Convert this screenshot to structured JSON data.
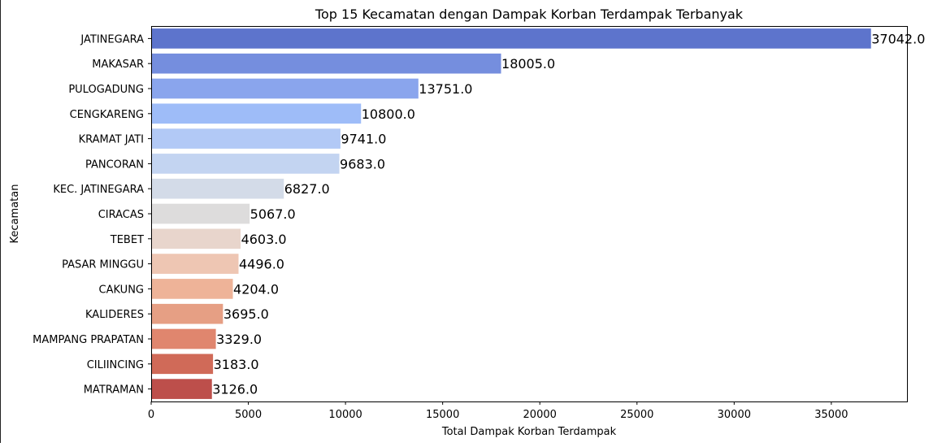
{
  "chart_data": {
    "type": "bar",
    "orientation": "horizontal",
    "title": "Top 15 Kecamatan dengan Dampak Korban Terdampak Terbanyak",
    "xlabel": "Total Dampak Korban Terdampak",
    "ylabel": "Kecamatan",
    "xlim": [
      0,
      38894
    ],
    "xticks": [
      0,
      5000,
      10000,
      15000,
      20000,
      25000,
      30000,
      35000
    ],
    "grid": false,
    "legend": "none",
    "categories": [
      "JATINEGARA",
      "MAKASAR",
      "PULOGADUNG",
      "CENGKARENG",
      "KRAMAT JATI",
      "PANCORAN",
      "KEC. JATINEGARA",
      "CIRACAS",
      "TEBET",
      "PASAR MINGGU",
      "CAKUNG",
      "KALIDERES",
      "MAMPANG PRAPATAN",
      "CILIINCING",
      "MATRAMAN"
    ],
    "values": [
      37042.0,
      18005.0,
      13751.0,
      10800.0,
      9741.0,
      9683.0,
      6827.0,
      5067.0,
      4603.0,
      4496.0,
      4204.0,
      3695.0,
      3329.0,
      3183.0,
      3126.0
    ],
    "value_labels": [
      "37042.0",
      "18005.0",
      "13751.0",
      "10800.0",
      "9741.0",
      "9683.0",
      "6827.0",
      "5067.0",
      "4603.0",
      "4496.0",
      "4204.0",
      "3695.0",
      "3329.0",
      "3183.0",
      "3126.0"
    ],
    "colors": [
      "#5d74cc",
      "#758ede",
      "#8aa5ed",
      "#9ebcf8",
      "#b2c9f6",
      "#c3d4f1",
      "#d3dbe8",
      "#dddcdc",
      "#e8d5cc",
      "#eec6b3",
      "#eeb398",
      "#e69f84",
      "#e0866e",
      "#d06a58",
      "#bd4f4b"
    ]
  }
}
